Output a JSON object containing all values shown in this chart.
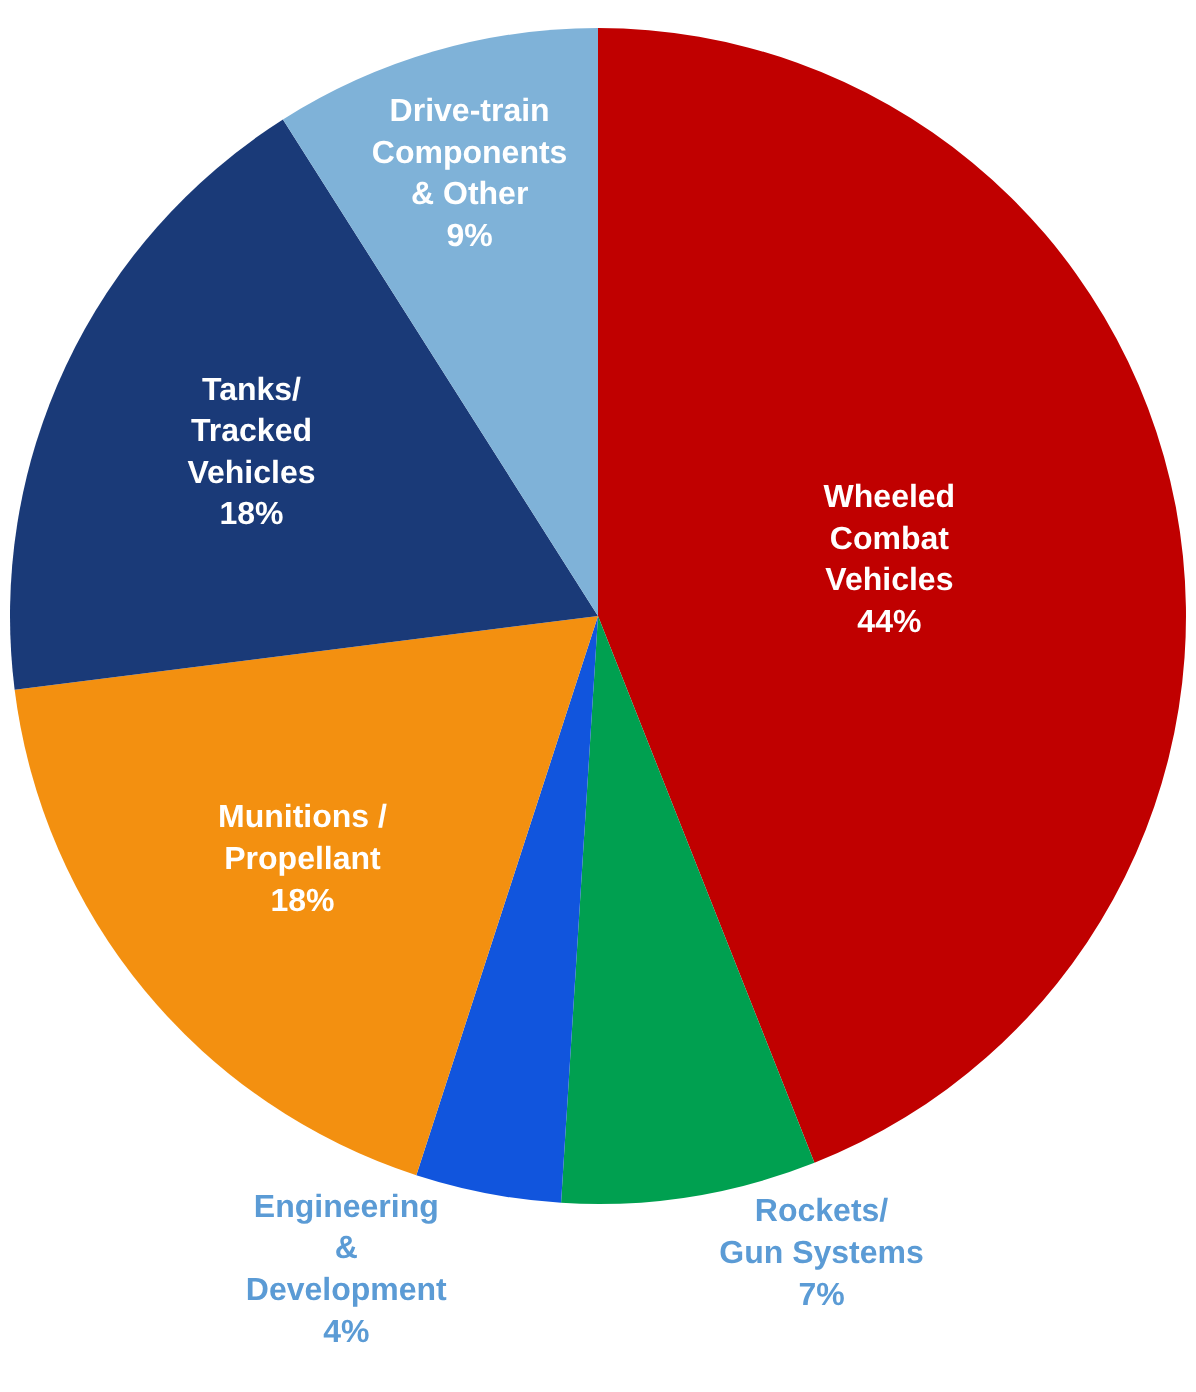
{
  "chart_data": {
    "type": "pie",
    "categories": [
      "Wheeled Combat Vehicles",
      "Rockets/ Gun Systems",
      "Engineering & Development",
      "Munitions / Propellant",
      "Tanks/ Tracked Vehicles",
      "Drive-train Components & Other"
    ],
    "values": [
      44,
      7,
      4,
      18,
      18,
      9
    ],
    "value_labels": [
      "44%",
      "7%",
      "4%",
      "18%",
      "18%",
      "9%"
    ],
    "colors": [
      "#c00000",
      "#00a050",
      "#1155dd",
      "#f39010",
      "#1a3a78",
      "#7fb2d8"
    ],
    "legend": false
  }
}
